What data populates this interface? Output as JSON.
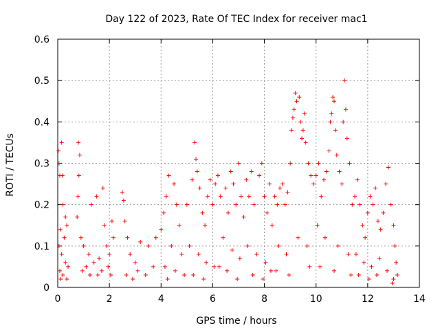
{
  "chart_data": {
    "type": "scatter",
    "title": "Day 122 of 2023, Rate Of TEC Index for receiver mac1",
    "xlabel": "GPS time / hours",
    "ylabel": "ROTI / TECUs",
    "xlim": [
      0,
      14
    ],
    "ylim": [
      0,
      0.6
    ],
    "xticks": [
      "0",
      "2",
      "4",
      "6",
      "8",
      "10",
      "12",
      "14"
    ],
    "yticks": [
      "0",
      "0.1",
      "0.2",
      "0.3",
      "0.4",
      "0.5",
      "0.6"
    ],
    "grid": true,
    "marker": "+",
    "series_color": "#ff0000",
    "points": [
      [
        0.02,
        0.33
      ],
      [
        0.05,
        0.3
      ],
      [
        0.08,
        0.27
      ],
      [
        0.15,
        0.35
      ],
      [
        0.18,
        0.27
      ],
      [
        0.2,
        0.2
      ],
      [
        0.3,
        0.17
      ],
      [
        0.1,
        0.14
      ],
      [
        0.25,
        0.12
      ],
      [
        0.35,
        0.15
      ],
      [
        0.05,
        0.1
      ],
      [
        0.15,
        0.08
      ],
      [
        0.3,
        0.06
      ],
      [
        0.4,
        0.05
      ],
      [
        0.08,
        0.04
      ],
      [
        0.2,
        0.03
      ],
      [
        0.35,
        0.02
      ],
      [
        0.12,
        0.02
      ],
      [
        0.8,
        0.35
      ],
      [
        0.85,
        0.32
      ],
      [
        0.82,
        0.27
      ],
      [
        0.78,
        0.22
      ],
      [
        0.75,
        0.17
      ],
      [
        0.9,
        0.12
      ],
      [
        1.0,
        0.1
      ],
      [
        1.2,
        0.08
      ],
      [
        1.4,
        0.06
      ],
      [
        1.1,
        0.05
      ],
      [
        1.6,
        0.07
      ],
      [
        1.5,
        0.22
      ],
      [
        1.3,
        0.2
      ],
      [
        1.8,
        0.15
      ],
      [
        1.75,
        0.24
      ],
      [
        1.9,
        0.1
      ],
      [
        2.0,
        0.08
      ],
      [
        2.1,
        0.16
      ],
      [
        2.15,
        0.12
      ],
      [
        1.95,
        0.05
      ],
      [
        1.7,
        0.04
      ],
      [
        0.95,
        0.04
      ],
      [
        1.25,
        0.03
      ],
      [
        1.55,
        0.03
      ],
      [
        2.05,
        0.03
      ],
      [
        2.5,
        0.23
      ],
      [
        2.55,
        0.21
      ],
      [
        2.6,
        0.16
      ],
      [
        2.7,
        0.12
      ],
      [
        2.8,
        0.08
      ],
      [
        3.0,
        0.06
      ],
      [
        3.2,
        0.11
      ],
      [
        3.5,
        0.1
      ],
      [
        3.8,
        0.12
      ],
      [
        3.1,
        0.04
      ],
      [
        3.4,
        0.03
      ],
      [
        3.7,
        0.05
      ],
      [
        2.65,
        0.03
      ],
      [
        2.9,
        0.02
      ],
      [
        4.0,
        0.14
      ],
      [
        4.1,
        0.18
      ],
      [
        4.2,
        0.22
      ],
      [
        4.3,
        0.27
      ],
      [
        4.5,
        0.25
      ],
      [
        4.6,
        0.2
      ],
      [
        4.7,
        0.15
      ],
      [
        4.4,
        0.1
      ],
      [
        4.8,
        0.08
      ],
      [
        4.15,
        0.05
      ],
      [
        4.55,
        0.04
      ],
      [
        4.9,
        0.03
      ],
      [
        4.25,
        0.02
      ],
      [
        5.0,
        0.2
      ],
      [
        5.2,
        0.26
      ],
      [
        5.3,
        0.35
      ],
      [
        5.35,
        0.31
      ],
      [
        5.4,
        0.28
      ],
      [
        5.5,
        0.24
      ],
      [
        5.6,
        0.18
      ],
      [
        5.7,
        0.15
      ],
      [
        5.8,
        0.22
      ],
      [
        5.9,
        0.26
      ],
      [
        6.0,
        0.2
      ],
      [
        5.1,
        0.1
      ],
      [
        5.45,
        0.08
      ],
      [
        5.75,
        0.06
      ],
      [
        6.05,
        0.05
      ],
      [
        5.25,
        0.03
      ],
      [
        5.65,
        0.02
      ],
      [
        6.1,
        0.25
      ],
      [
        6.2,
        0.27
      ],
      [
        6.3,
        0.22
      ],
      [
        6.5,
        0.24
      ],
      [
        6.6,
        0.18
      ],
      [
        6.7,
        0.28
      ],
      [
        6.8,
        0.25
      ],
      [
        6.9,
        0.2
      ],
      [
        7.0,
        0.3
      ],
      [
        7.1,
        0.22
      ],
      [
        7.2,
        0.17
      ],
      [
        6.4,
        0.12
      ],
      [
        6.75,
        0.09
      ],
      [
        7.05,
        0.07
      ],
      [
        6.25,
        0.05
      ],
      [
        6.55,
        0.04
      ],
      [
        6.95,
        0.02
      ],
      [
        7.3,
        0.26
      ],
      [
        7.4,
        0.22
      ],
      [
        7.5,
        0.28
      ],
      [
        7.6,
        0.2
      ],
      [
        7.8,
        0.27
      ],
      [
        7.9,
        0.3
      ],
      [
        8.0,
        0.22
      ],
      [
        8.1,
        0.18
      ],
      [
        8.2,
        0.25
      ],
      [
        8.3,
        0.15
      ],
      [
        7.35,
        0.1
      ],
      [
        7.7,
        0.08
      ],
      [
        8.05,
        0.06
      ],
      [
        8.25,
        0.04
      ],
      [
        7.55,
        0.03
      ],
      [
        7.95,
        0.02
      ],
      [
        8.4,
        0.22
      ],
      [
        8.5,
        0.2
      ],
      [
        8.6,
        0.24
      ],
      [
        8.7,
        0.25
      ],
      [
        8.8,
        0.2
      ],
      [
        8.9,
        0.23
      ],
      [
        9.0,
        0.3
      ],
      [
        9.05,
        0.38
      ],
      [
        9.1,
        0.41
      ],
      [
        9.15,
        0.43
      ],
      [
        9.2,
        0.47
      ],
      [
        9.25,
        0.45
      ],
      [
        9.35,
        0.46
      ],
      [
        9.4,
        0.4
      ],
      [
        9.45,
        0.36
      ],
      [
        9.5,
        0.38
      ],
      [
        9.55,
        0.42
      ],
      [
        9.6,
        0.35
      ],
      [
        9.7,
        0.3
      ],
      [
        9.8,
        0.27
      ],
      [
        9.9,
        0.25
      ],
      [
        8.55,
        0.1
      ],
      [
        8.85,
        0.08
      ],
      [
        9.3,
        0.12
      ],
      [
        9.65,
        0.1
      ],
      [
        8.45,
        0.04
      ],
      [
        8.95,
        0.03
      ],
      [
        9.75,
        0.05
      ],
      [
        10.0,
        0.27
      ],
      [
        10.1,
        0.3
      ],
      [
        10.2,
        0.22
      ],
      [
        10.3,
        0.26
      ],
      [
        10.4,
        0.28
      ],
      [
        10.5,
        0.33
      ],
      [
        10.55,
        0.4
      ],
      [
        10.6,
        0.42
      ],
      [
        10.65,
        0.46
      ],
      [
        10.7,
        0.45
      ],
      [
        10.75,
        0.38
      ],
      [
        10.8,
        0.32
      ],
      [
        10.9,
        0.28
      ],
      [
        11.0,
        0.25
      ],
      [
        11.05,
        0.4
      ],
      [
        11.1,
        0.5
      ],
      [
        11.15,
        0.43
      ],
      [
        11.2,
        0.36
      ],
      [
        11.3,
        0.3
      ],
      [
        11.4,
        0.2
      ],
      [
        10.05,
        0.15
      ],
      [
        10.35,
        0.12
      ],
      [
        10.85,
        0.1
      ],
      [
        11.25,
        0.08
      ],
      [
        10.15,
        0.05
      ],
      [
        10.7,
        0.04
      ],
      [
        11.35,
        0.03
      ],
      [
        11.5,
        0.22
      ],
      [
        11.6,
        0.26
      ],
      [
        11.7,
        0.2
      ],
      [
        11.8,
        0.15
      ],
      [
        11.9,
        0.12
      ],
      [
        12.0,
        0.18
      ],
      [
        12.1,
        0.22
      ],
      [
        12.2,
        0.2
      ],
      [
        12.3,
        0.24
      ],
      [
        12.4,
        0.16
      ],
      [
        12.5,
        0.14
      ],
      [
        12.6,
        0.18
      ],
      [
        12.7,
        0.25
      ],
      [
        12.8,
        0.29
      ],
      [
        12.9,
        0.2
      ],
      [
        13.0,
        0.15
      ],
      [
        13.05,
        0.1
      ],
      [
        13.1,
        0.06
      ],
      [
        13.15,
        0.03
      ],
      [
        11.55,
        0.08
      ],
      [
        11.85,
        0.06
      ],
      [
        12.15,
        0.05
      ],
      [
        12.45,
        0.07
      ],
      [
        12.75,
        0.04
      ],
      [
        13.0,
        0.02
      ],
      [
        11.65,
        0.03
      ],
      [
        12.05,
        0.02
      ],
      [
        12.35,
        0.03
      ],
      [
        12.95,
        0.01
      ]
    ]
  }
}
